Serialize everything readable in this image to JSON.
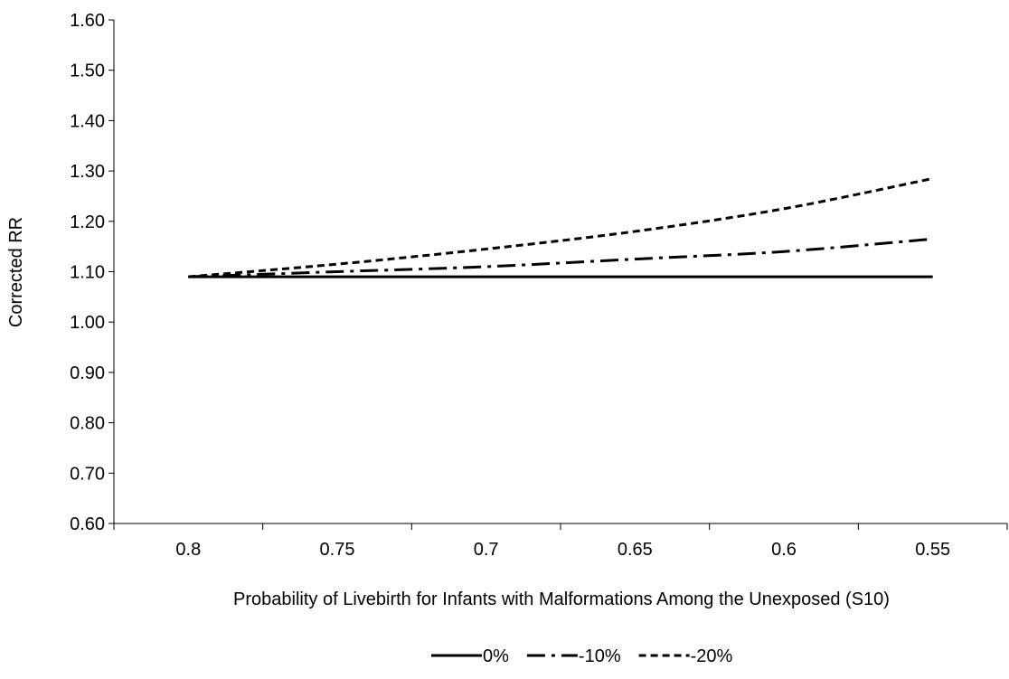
{
  "chart_data": {
    "type": "line",
    "title": "",
    "xlabel": "Probability of Livebirth for Infants with  Malformations Among the Unexposed (S10)",
    "ylabel": "Corrected RR",
    "x": [
      0.8,
      0.75,
      0.7,
      0.65,
      0.6,
      0.55
    ],
    "x_tick_labels": [
      "0.8",
      "0.75",
      "0.7",
      "0.65",
      "0.6",
      "0.55"
    ],
    "ylim": [
      0.6,
      1.6
    ],
    "y_ticks": [
      0.6,
      0.7,
      0.8,
      0.9,
      1.0,
      1.1,
      1.2,
      1.3,
      1.4,
      1.5,
      1.6
    ],
    "y_tick_labels": [
      "0.60",
      "0.70",
      "0.80",
      "0.90",
      "1.00",
      "1.10",
      "1.20",
      "1.30",
      "1.40",
      "1.50",
      "1.60"
    ],
    "grid": false,
    "legend_position": "bottom",
    "series": [
      {
        "name": "0%",
        "dash": "solid",
        "color": "#000000",
        "values": [
          1.09,
          1.09,
          1.09,
          1.09,
          1.09,
          1.09
        ]
      },
      {
        "name": "-10%",
        "dash": "dash-dot",
        "color": "#000000",
        "values": [
          1.09,
          1.1,
          1.11,
          1.125,
          1.14,
          1.165
        ]
      },
      {
        "name": "-20%",
        "dash": "dashed",
        "color": "#000000",
        "values": [
          1.09,
          1.115,
          1.145,
          1.18,
          1.225,
          1.285
        ]
      }
    ]
  }
}
